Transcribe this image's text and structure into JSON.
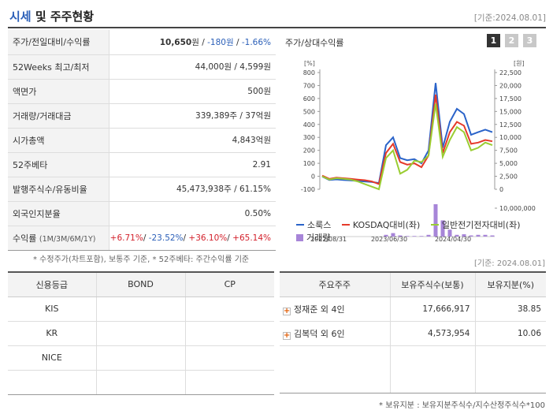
{
  "header": {
    "title_main": "시세",
    "title_rest": " 및 주주현황",
    "base_date": "[기준:2024.08.01]"
  },
  "price_table": {
    "rows": [
      {
        "label": "주가/전일대비/수익률",
        "price": "10,650",
        "won": "원",
        "sep1": " / ",
        "change": "-180원",
        "sep2": " / ",
        "rate": "-1.66%"
      },
      {
        "label": "52Weeks 최고/최저",
        "value": "44,000원 / 4,599원"
      },
      {
        "label": "액면가",
        "value": "500원"
      },
      {
        "label": "거래량/거래대금",
        "value": "339,389주 / 37억원"
      },
      {
        "label": "시가총액",
        "value": "4,843억원"
      },
      {
        "label": "52주베타",
        "value": "2.91"
      },
      {
        "label": "발행주식수/유동비율",
        "value": "45,473,938주 / 61.15%"
      },
      {
        "label": "외국인지분율",
        "value": "0.50%"
      },
      {
        "label": "수익률",
        "label_sub": "(1M/3M/6M/1Y)",
        "r1": "+6.71%",
        "r2": "-23.52%",
        "r3": "+36.10%",
        "r4": "+65.14%"
      }
    ],
    "footnote": "* 수정주가(차트포함), 보통주 기준, * 52주베타: 주간수익률 기준"
  },
  "chart": {
    "title": "주가/상대수익률",
    "tabs": [
      "1",
      "2",
      "3"
    ],
    "active_tab": 0,
    "left_unit": "[%]",
    "right_unit": "[원]",
    "volume_label": "10,000,000",
    "legend": [
      {
        "name": "소룩스",
        "color": "#2a63c9",
        "kind": "line"
      },
      {
        "name": "KOSDAQ대비(좌)",
        "color": "#e53a2a",
        "kind": "line"
      },
      {
        "name": "일반전기전자대비(좌)",
        "color": "#9acd32",
        "kind": "line"
      },
      {
        "name": "거래량",
        "color": "#a785d8",
        "kind": "bar"
      }
    ]
  },
  "chart_data": {
    "type": "line",
    "x_ticks": [
      "2022/08/31",
      "2023/06/30",
      "2024/04/30"
    ],
    "y_left_ticks": [
      800,
      700,
      600,
      500,
      400,
      300,
      200,
      100,
      0,
      -100
    ],
    "y_right_ticks": [
      "22,500",
      "20,000",
      "17,500",
      "15,000",
      "12,500",
      "10,000",
      "7,500",
      "5,000",
      "2,500",
      "0"
    ],
    "ylim_left": [
      -100,
      800
    ],
    "ylim_right": [
      0,
      22500
    ],
    "series": [
      {
        "name": "소룩스",
        "color": "#2a63c9",
        "axis": "right",
        "values": [
          2450,
          1800,
          1900,
          1800,
          1700,
          1600,
          1500,
          1400,
          1200,
          8500,
          10000,
          6000,
          5600,
          5800,
          5000,
          7500,
          20500,
          8000,
          13000,
          15500,
          14500,
          10500,
          11000,
          11500,
          11000
        ]
      },
      {
        "name": "KOSDAQ대비(좌)",
        "color": "#e53a2a",
        "axis": "left",
        "values": [
          5,
          -20,
          -10,
          -15,
          -20,
          -25,
          -30,
          -40,
          -60,
          180,
          250,
          110,
          90,
          100,
          70,
          160,
          630,
          180,
          340,
          420,
          390,
          250,
          260,
          280,
          270
        ]
      },
      {
        "name": "일반전기전자대비(좌)",
        "color": "#9acd32",
        "axis": "left",
        "values": [
          0,
          -25,
          -15,
          -20,
          -25,
          -40,
          -60,
          -80,
          -100,
          140,
          200,
          20,
          50,
          120,
          110,
          160,
          560,
          150,
          280,
          380,
          340,
          200,
          220,
          260,
          240
        ]
      }
    ],
    "volume": [
      0,
      0,
      0,
      0,
      0,
      0,
      0,
      0,
      0,
      0.15,
      0.3,
      0.1,
      0.05,
      0.05,
      0.05,
      0.15,
      2.8,
      1.4,
      0.6,
      0.15,
      0.2,
      0.1,
      0.15,
      0.15,
      0.1
    ]
  },
  "base_date2": "[기준: 2024.08.01]",
  "credit_table": {
    "headers": [
      "신용등급",
      "BOND",
      "CP"
    ],
    "rows": [
      {
        "agency": "KIS",
        "bond": "",
        "cp": ""
      },
      {
        "agency": "KR",
        "bond": "",
        "cp": ""
      },
      {
        "agency": "NICE",
        "bond": "",
        "cp": ""
      },
      {
        "agency": "",
        "bond": "",
        "cp": ""
      }
    ]
  },
  "holder_table": {
    "headers": [
      "주요주주",
      "보유주식수(보통)",
      "보유지분(%)"
    ],
    "rows": [
      {
        "name": "정재준 외 4인",
        "shares": "17,666,917",
        "pct": "38.85"
      },
      {
        "name": "김복덕 외 6인",
        "shares": "4,573,954",
        "pct": "10.06"
      },
      {
        "name": "",
        "shares": "",
        "pct": ""
      }
    ],
    "footnote": "* 보유지분 : 보유지분주식수/지수산정주식수*100"
  }
}
